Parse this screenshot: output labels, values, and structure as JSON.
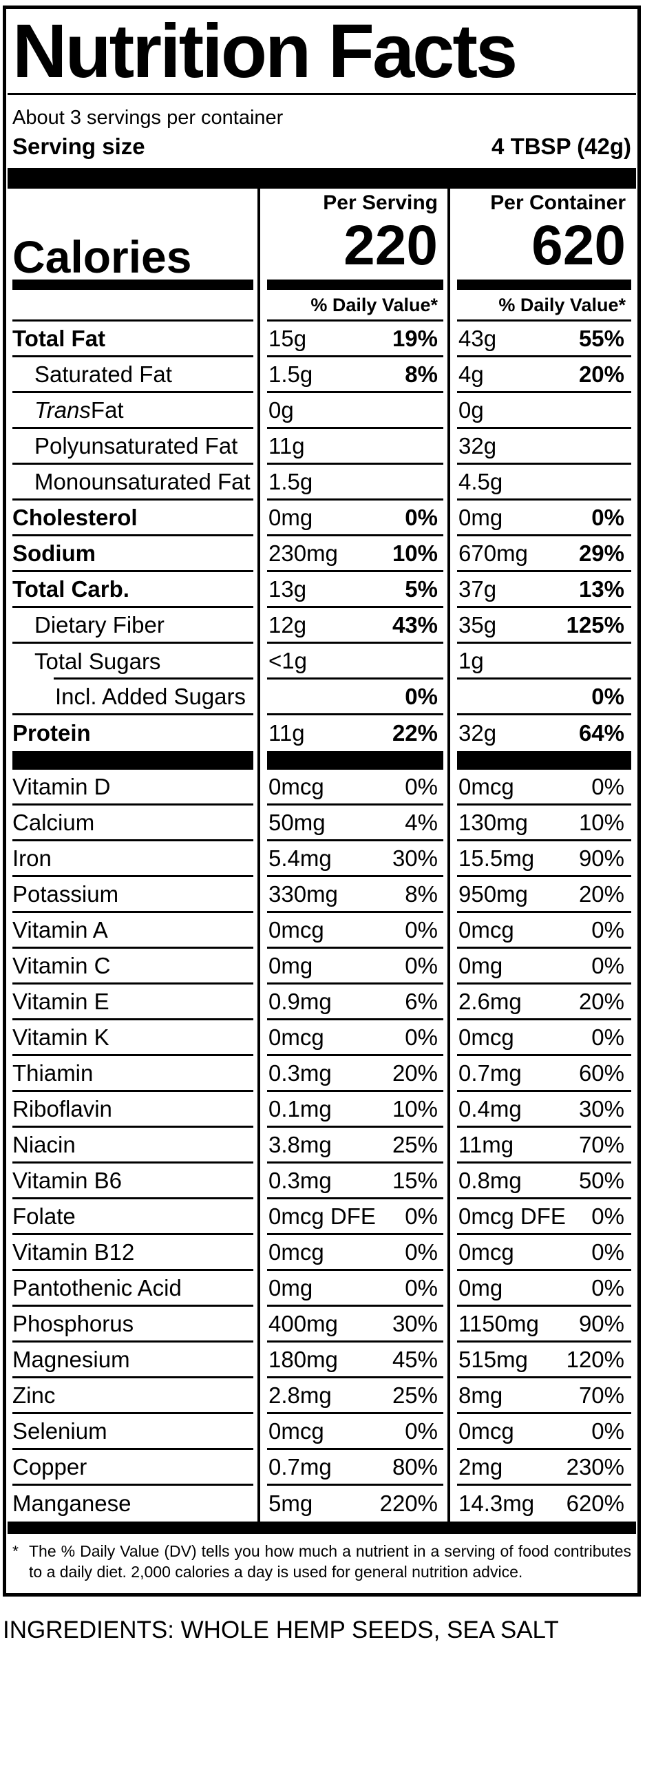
{
  "colors": {
    "ink": "#000000",
    "paper": "#ffffff"
  },
  "title": "Nutrition Facts",
  "servings_per_container": "About 3 servings per container",
  "serving_size_label": "Serving size",
  "serving_size_value": "4 TBSP (42g)",
  "calories": {
    "label": "Calories",
    "per_serving_header": "Per Serving",
    "per_container_header": "Per Container",
    "per_serving_value": "220",
    "per_container_value": "620",
    "daily_value_header": "% Daily Value*"
  },
  "nutrient_rows": [
    {
      "label": "Total Fat",
      "bold": true,
      "indent": 0,
      "serving": {
        "amount": "15g",
        "dv": "19%"
      },
      "container": {
        "amount": "43g",
        "dv": "55%"
      },
      "dv_bold": true,
      "rule": "full"
    },
    {
      "label": "Saturated Fat",
      "bold": false,
      "indent": 1,
      "serving": {
        "amount": "1.5g",
        "dv": "8%"
      },
      "container": {
        "amount": "4g",
        "dv": "20%"
      },
      "dv_bold": true,
      "rule": "full"
    },
    {
      "label": " Fat",
      "italic_prefix": "Trans",
      "bold": false,
      "indent": 1,
      "serving": {
        "amount": "0g",
        "dv": ""
      },
      "container": {
        "amount": "0g",
        "dv": ""
      },
      "dv_bold": false,
      "rule": "full"
    },
    {
      "label": "Polyunsaturated Fat",
      "bold": false,
      "indent": 1,
      "serving": {
        "amount": "11g",
        "dv": ""
      },
      "container": {
        "amount": "32g",
        "dv": ""
      },
      "dv_bold": false,
      "rule": "full"
    },
    {
      "label": "Monounsaturated Fat",
      "bold": false,
      "indent": 1,
      "serving": {
        "amount": "1.5g",
        "dv": ""
      },
      "container": {
        "amount": "4.5g",
        "dv": ""
      },
      "dv_bold": false,
      "rule": "full"
    },
    {
      "label": "Cholesterol",
      "bold": true,
      "indent": 0,
      "serving": {
        "amount": "0mg",
        "dv": "0%"
      },
      "container": {
        "amount": "0mg",
        "dv": "0%"
      },
      "dv_bold": true,
      "rule": "full"
    },
    {
      "label": "Sodium",
      "bold": true,
      "indent": 0,
      "serving": {
        "amount": "230mg",
        "dv": "10%"
      },
      "container": {
        "amount": "670mg",
        "dv": "29%"
      },
      "dv_bold": true,
      "rule": "full"
    },
    {
      "label": "Total Carb.",
      "bold": true,
      "indent": 0,
      "serving": {
        "amount": "13g",
        "dv": "5%"
      },
      "container": {
        "amount": "37g",
        "dv": "13%"
      },
      "dv_bold": true,
      "rule": "full"
    },
    {
      "label": "Dietary Fiber",
      "bold": false,
      "indent": 1,
      "serving": {
        "amount": "12g",
        "dv": "43%"
      },
      "container": {
        "amount": "35g",
        "dv": "125%"
      },
      "dv_bold": true,
      "rule": "full"
    },
    {
      "label": "Total Sugars",
      "bold": false,
      "indent": 1,
      "serving": {
        "amount": "<1g",
        "dv": ""
      },
      "container": {
        "amount": "1g",
        "dv": ""
      },
      "dv_bold": false,
      "rule": "indented"
    },
    {
      "label": "Incl. Added Sugars",
      "bold": false,
      "indent": 2,
      "serving": {
        "amount": "",
        "dv": "0%"
      },
      "container": {
        "amount": "",
        "dv": "0%"
      },
      "dv_bold": true,
      "rule": "full"
    },
    {
      "label": "Protein",
      "bold": true,
      "indent": 0,
      "serving": {
        "amount": "11g",
        "dv": "22%"
      },
      "container": {
        "amount": "32g",
        "dv": "64%"
      },
      "dv_bold": true,
      "rule": "none"
    }
  ],
  "vitamin_rows": [
    {
      "label": "Vitamin D",
      "bold": false,
      "indent": 0,
      "serving": {
        "amount": "0mcg",
        "dv": "0%"
      },
      "container": {
        "amount": "0mcg",
        "dv": "0%"
      },
      "dv_bold": false,
      "rule": "full"
    },
    {
      "label": "Calcium",
      "bold": false,
      "indent": 0,
      "serving": {
        "amount": "50mg",
        "dv": "4%"
      },
      "container": {
        "amount": "130mg",
        "dv": "10%"
      },
      "dv_bold": false,
      "rule": "full"
    },
    {
      "label": "Iron",
      "bold": false,
      "indent": 0,
      "serving": {
        "amount": "5.4mg",
        "dv": "30%"
      },
      "container": {
        "amount": "15.5mg",
        "dv": "90%"
      },
      "dv_bold": false,
      "rule": "full"
    },
    {
      "label": "Potassium",
      "bold": false,
      "indent": 0,
      "serving": {
        "amount": "330mg",
        "dv": "8%"
      },
      "container": {
        "amount": "950mg",
        "dv": "20%"
      },
      "dv_bold": false,
      "rule": "full"
    },
    {
      "label": "Vitamin A",
      "bold": false,
      "indent": 0,
      "serving": {
        "amount": "0mcg",
        "dv": "0%"
      },
      "container": {
        "amount": "0mcg",
        "dv": "0%"
      },
      "dv_bold": false,
      "rule": "full"
    },
    {
      "label": "Vitamin C",
      "bold": false,
      "indent": 0,
      "serving": {
        "amount": "0mg",
        "dv": "0%"
      },
      "container": {
        "amount": "0mg",
        "dv": "0%"
      },
      "dv_bold": false,
      "rule": "full"
    },
    {
      "label": "Vitamin E",
      "bold": false,
      "indent": 0,
      "serving": {
        "amount": "0.9mg",
        "dv": "6%"
      },
      "container": {
        "amount": "2.6mg",
        "dv": "20%"
      },
      "dv_bold": false,
      "rule": "full"
    },
    {
      "label": "Vitamin K",
      "bold": false,
      "indent": 0,
      "serving": {
        "amount": "0mcg",
        "dv": "0%"
      },
      "container": {
        "amount": "0mcg",
        "dv": "0%"
      },
      "dv_bold": false,
      "rule": "full"
    },
    {
      "label": "Thiamin",
      "bold": false,
      "indent": 0,
      "serving": {
        "amount": "0.3mg",
        "dv": "20%"
      },
      "container": {
        "amount": "0.7mg",
        "dv": "60%"
      },
      "dv_bold": false,
      "rule": "full"
    },
    {
      "label": "Riboflavin",
      "bold": false,
      "indent": 0,
      "serving": {
        "amount": "0.1mg",
        "dv": "10%"
      },
      "container": {
        "amount": "0.4mg",
        "dv": "30%"
      },
      "dv_bold": false,
      "rule": "full"
    },
    {
      "label": "Niacin",
      "bold": false,
      "indent": 0,
      "serving": {
        "amount": "3.8mg",
        "dv": "25%"
      },
      "container": {
        "amount": "11mg",
        "dv": "70%"
      },
      "dv_bold": false,
      "rule": "full"
    },
    {
      "label": "Vitamin B6",
      "bold": false,
      "indent": 0,
      "serving": {
        "amount": "0.3mg",
        "dv": "15%"
      },
      "container": {
        "amount": "0.8mg",
        "dv": "50%"
      },
      "dv_bold": false,
      "rule": "full"
    },
    {
      "label": "Folate",
      "bold": false,
      "indent": 0,
      "serving": {
        "amount": "0mcg DFE",
        "dv": "0%"
      },
      "container": {
        "amount": "0mcg DFE",
        "dv": "0%"
      },
      "dv_bold": false,
      "rule": "full"
    },
    {
      "label": "Vitamin B12",
      "bold": false,
      "indent": 0,
      "serving": {
        "amount": "0mcg",
        "dv": "0%"
      },
      "container": {
        "amount": "0mcg",
        "dv": "0%"
      },
      "dv_bold": false,
      "rule": "full"
    },
    {
      "label": "Pantothenic Acid",
      "bold": false,
      "indent": 0,
      "serving": {
        "amount": "0mg",
        "dv": "0%"
      },
      "container": {
        "amount": "0mg",
        "dv": "0%"
      },
      "dv_bold": false,
      "rule": "full"
    },
    {
      "label": "Phosphorus",
      "bold": false,
      "indent": 0,
      "serving": {
        "amount": "400mg",
        "dv": "30%"
      },
      "container": {
        "amount": "1150mg",
        "dv": "90%"
      },
      "dv_bold": false,
      "rule": "full"
    },
    {
      "label": "Magnesium",
      "bold": false,
      "indent": 0,
      "serving": {
        "amount": "180mg",
        "dv": "45%"
      },
      "container": {
        "amount": "515mg",
        "dv": "120%"
      },
      "dv_bold": false,
      "rule": "full"
    },
    {
      "label": "Zinc",
      "bold": false,
      "indent": 0,
      "serving": {
        "amount": "2.8mg",
        "dv": "25%"
      },
      "container": {
        "amount": "8mg",
        "dv": "70%"
      },
      "dv_bold": false,
      "rule": "full"
    },
    {
      "label": "Selenium",
      "bold": false,
      "indent": 0,
      "serving": {
        "amount": "0mcg",
        "dv": "0%"
      },
      "container": {
        "amount": "0mcg",
        "dv": "0%"
      },
      "dv_bold": false,
      "rule": "full"
    },
    {
      "label": "Copper",
      "bold": false,
      "indent": 0,
      "serving": {
        "amount": "0.7mg",
        "dv": "80%"
      },
      "container": {
        "amount": "2mg",
        "dv": "230%"
      },
      "dv_bold": false,
      "rule": "full"
    },
    {
      "label": "Manganese",
      "bold": false,
      "indent": 0,
      "serving": {
        "amount": "5mg",
        "dv": "220%"
      },
      "container": {
        "amount": "14.3mg",
        "dv": "620%"
      },
      "dv_bold": false,
      "rule": "none"
    }
  ],
  "footnote_marker": "*",
  "footnote": "The % Daily Value (DV) tells you how much a nutrient in a serving of food contributes to a daily diet. 2,000 calories a day is used for general nutrition advice.",
  "ingredients": "INGREDIENTS: WHOLE HEMP SEEDS, SEA SALT"
}
